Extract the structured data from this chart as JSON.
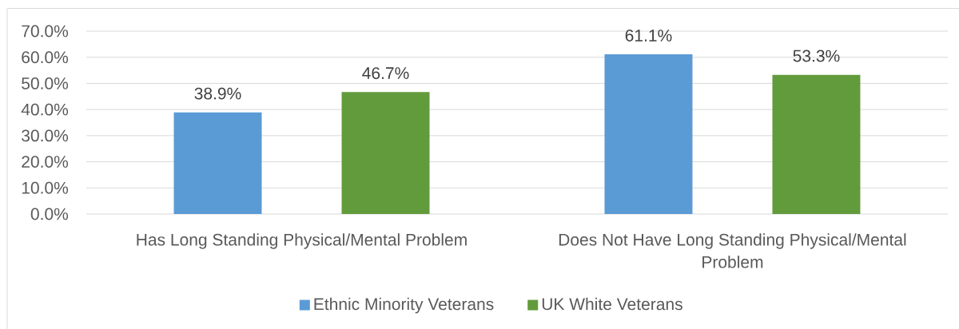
{
  "chart_data": {
    "type": "bar",
    "categories": [
      "Has Long Standing Physical/Mental Problem",
      "Does Not Have Long Standing Physical/Mental Problem"
    ],
    "series": [
      {
        "name": "Ethnic Minority Veterans",
        "color": "#5b9bd5",
        "values": [
          38.9,
          61.1
        ],
        "value_labels": [
          "38.9%",
          "61.1%"
        ]
      },
      {
        "name": "UK White Veterans",
        "color": "#629b3c",
        "values": [
          46.7,
          53.3
        ],
        "value_labels": [
          "46.7%",
          "53.3%"
        ]
      }
    ],
    "ylim": [
      0,
      70
    ],
    "yticks": [
      {
        "value": 0,
        "label": "0.0%"
      },
      {
        "value": 10,
        "label": "10.0%"
      },
      {
        "value": 20,
        "label": "20.0%"
      },
      {
        "value": 30,
        "label": "30.0%"
      },
      {
        "value": 40,
        "label": "40.0%"
      },
      {
        "value": 50,
        "label": "50.0%"
      },
      {
        "value": 60,
        "label": "60.0%"
      },
      {
        "value": 70,
        "label": "70.0%"
      }
    ],
    "grid": "y",
    "legend": "bottom"
  }
}
